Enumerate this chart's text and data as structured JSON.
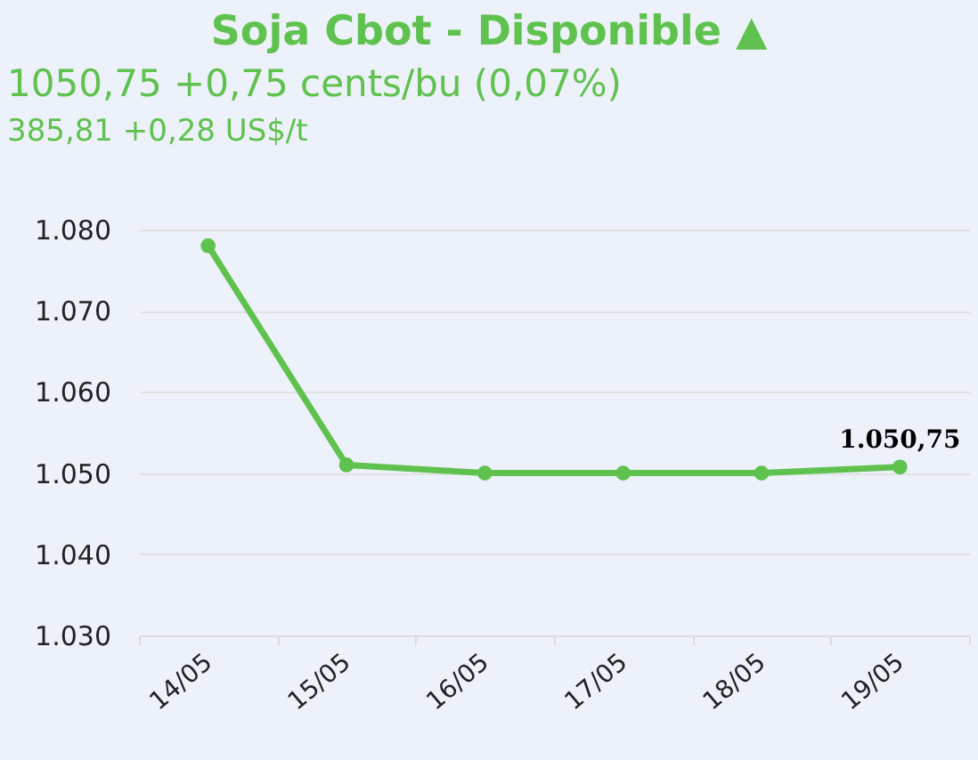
{
  "chart_data": {
    "type": "line",
    "title": "Soja Cbot - Disponible ▲",
    "subtitle": "1050,75 +0,75 cents/bu (0,07%)",
    "annotations": [
      "385,81 +0,28 US$/t"
    ],
    "categories": [
      "14/05",
      "15/05",
      "16/05",
      "17/05",
      "18/05",
      "19/05"
    ],
    "series": [
      {
        "color": "#5fc24f",
        "values": [
          1078,
          1051,
          1050,
          1050,
          1050,
          1050.75
        ],
        "value_labels": [
          null,
          null,
          null,
          null,
          null,
          "1.050,75"
        ]
      }
    ],
    "ylim": [
      1030,
      1080
    ],
    "yticks": [
      {
        "value": 1030,
        "label": "1.030"
      },
      {
        "value": 1040,
        "label": "1.040"
      },
      {
        "value": 1050,
        "label": "1.050"
      },
      {
        "value": 1060,
        "label": "1.060"
      },
      {
        "value": 1070,
        "label": "1.070"
      },
      {
        "value": 1080,
        "label": "1.080"
      }
    ],
    "grid": "y",
    "legend": false,
    "marker": "circle",
    "line_style": "solid"
  }
}
